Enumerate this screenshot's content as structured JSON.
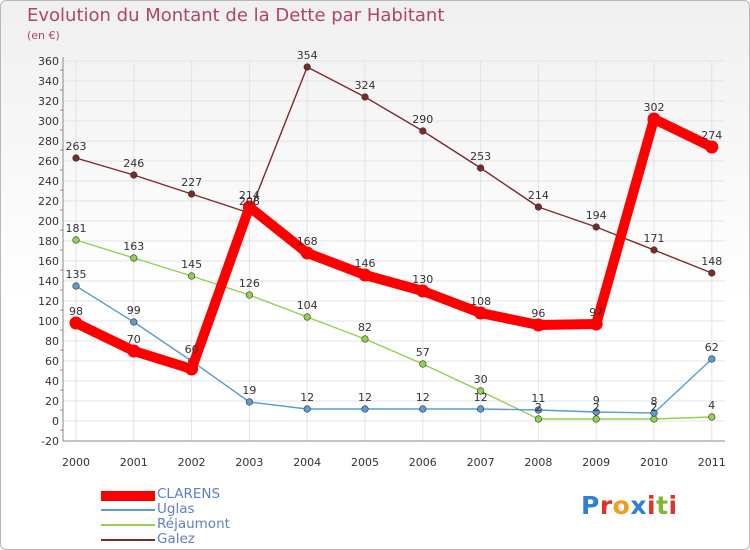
{
  "header": {
    "title": "Evolution du Montant de la Dette par Habitant",
    "subtitle": "(en €)"
  },
  "colors": {
    "text_accent": "#b0446c",
    "legend_text": "#5b80c6",
    "axis_text": "#333333"
  },
  "chart_data": {
    "type": "line",
    "title": "Evolution du Montant de la Dette par Habitant",
    "ylabel": "(en €)",
    "xlabel": "",
    "grid": true,
    "legend_position": "bottom-left",
    "x": [
      "2000",
      "2001",
      "2002",
      "2003",
      "2004",
      "2005",
      "2006",
      "2007",
      "2008",
      "2009",
      "2010",
      "2011"
    ],
    "ylim": [
      -20,
      360
    ],
    "yticks": [
      -20,
      0,
      20,
      40,
      60,
      80,
      100,
      120,
      140,
      160,
      180,
      200,
      220,
      240,
      260,
      280,
      300,
      320,
      340,
      360
    ],
    "series": [
      {
        "name": "CLARENS",
        "color": "#ff0000",
        "values": [
          98,
          70,
          52,
          214,
          168,
          146,
          130,
          108,
          96,
          97,
          302,
          274
        ],
        "labels": [
          "98",
          "70",
          "",
          "214",
          "168",
          "146",
          "130",
          "108",
          "96",
          "97",
          "302",
          "274"
        ]
      },
      {
        "name": "Uglas",
        "color": "#5b9bd5",
        "values": [
          135,
          99,
          60,
          19,
          12,
          12,
          12,
          12,
          11,
          9,
          8,
          62
        ],
        "labels": [
          "135",
          "99",
          "60",
          "19",
          "12",
          "12",
          "12",
          "12",
          "11",
          "9",
          "8",
          "62"
        ]
      },
      {
        "name": "Réjaumont",
        "color": "#92d050",
        "values": [
          181,
          163,
          145,
          126,
          104,
          82,
          57,
          30,
          2,
          2,
          2,
          4
        ],
        "labels": [
          "181",
          "163",
          "145",
          "126",
          "104",
          "82",
          "57",
          "30",
          "2",
          "2",
          "2",
          "4"
        ]
      },
      {
        "name": "Galez",
        "color": "#7b2a2a",
        "values": [
          263,
          246,
          227,
          208,
          354,
          324,
          290,
          253,
          214,
          194,
          171,
          148
        ],
        "labels": [
          "263",
          "246",
          "227",
          "208",
          "354",
          "324",
          "290",
          "253",
          "214",
          "194",
          "171",
          "148"
        ]
      }
    ]
  },
  "logo": {
    "text": "Proxiti",
    "letters": [
      "P",
      "r",
      "o",
      "x",
      "i",
      "t",
      "i"
    ]
  }
}
